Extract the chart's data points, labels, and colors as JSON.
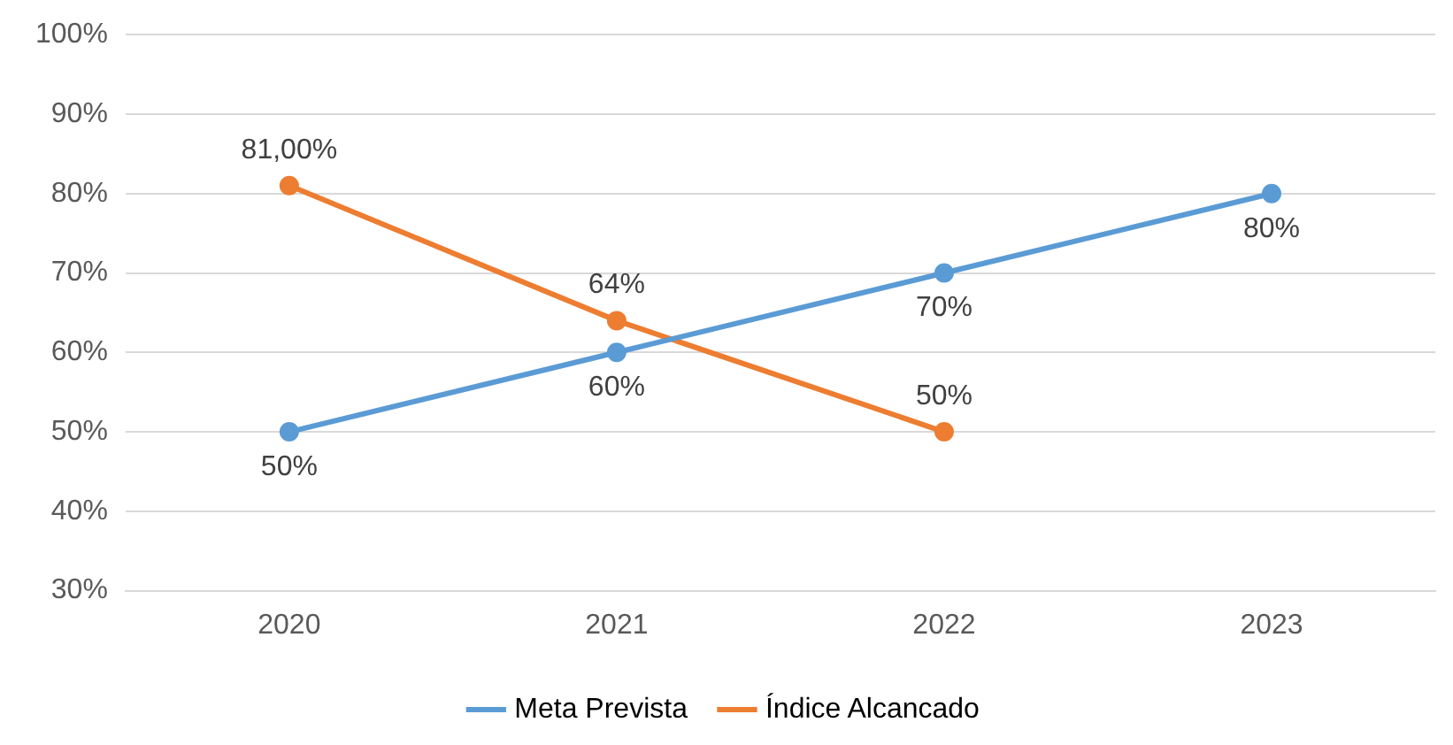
{
  "chart_data": {
    "type": "line",
    "categories": [
      "2020",
      "2021",
      "2022",
      "2023"
    ],
    "series": [
      {
        "name": "Meta Prevista",
        "color": "#5b9bd5",
        "values": [
          50,
          60,
          70,
          80
        ],
        "value_labels": [
          "50%",
          "60%",
          "70%",
          "80%"
        ]
      },
      {
        "name": "Índice Alcancado",
        "color": "#ed7d31",
        "values": [
          81,
          64,
          50,
          null
        ],
        "value_labels": [
          "81,00%",
          "64%",
          "50%",
          null
        ]
      }
    ],
    "ylim": [
      30,
      100
    ],
    "yticks": [
      {
        "value": 30,
        "label": "30%"
      },
      {
        "value": 40,
        "label": "40%"
      },
      {
        "value": 50,
        "label": "50%"
      },
      {
        "value": 60,
        "label": "60%"
      },
      {
        "value": 70,
        "label": "70%"
      },
      {
        "value": 80,
        "label": "80%"
      },
      {
        "value": 90,
        "label": "90%"
      },
      {
        "value": 100,
        "label": "100%"
      }
    ],
    "grid": "y",
    "legend": "bottom",
    "marker": "circle",
    "line_style": "solid"
  }
}
